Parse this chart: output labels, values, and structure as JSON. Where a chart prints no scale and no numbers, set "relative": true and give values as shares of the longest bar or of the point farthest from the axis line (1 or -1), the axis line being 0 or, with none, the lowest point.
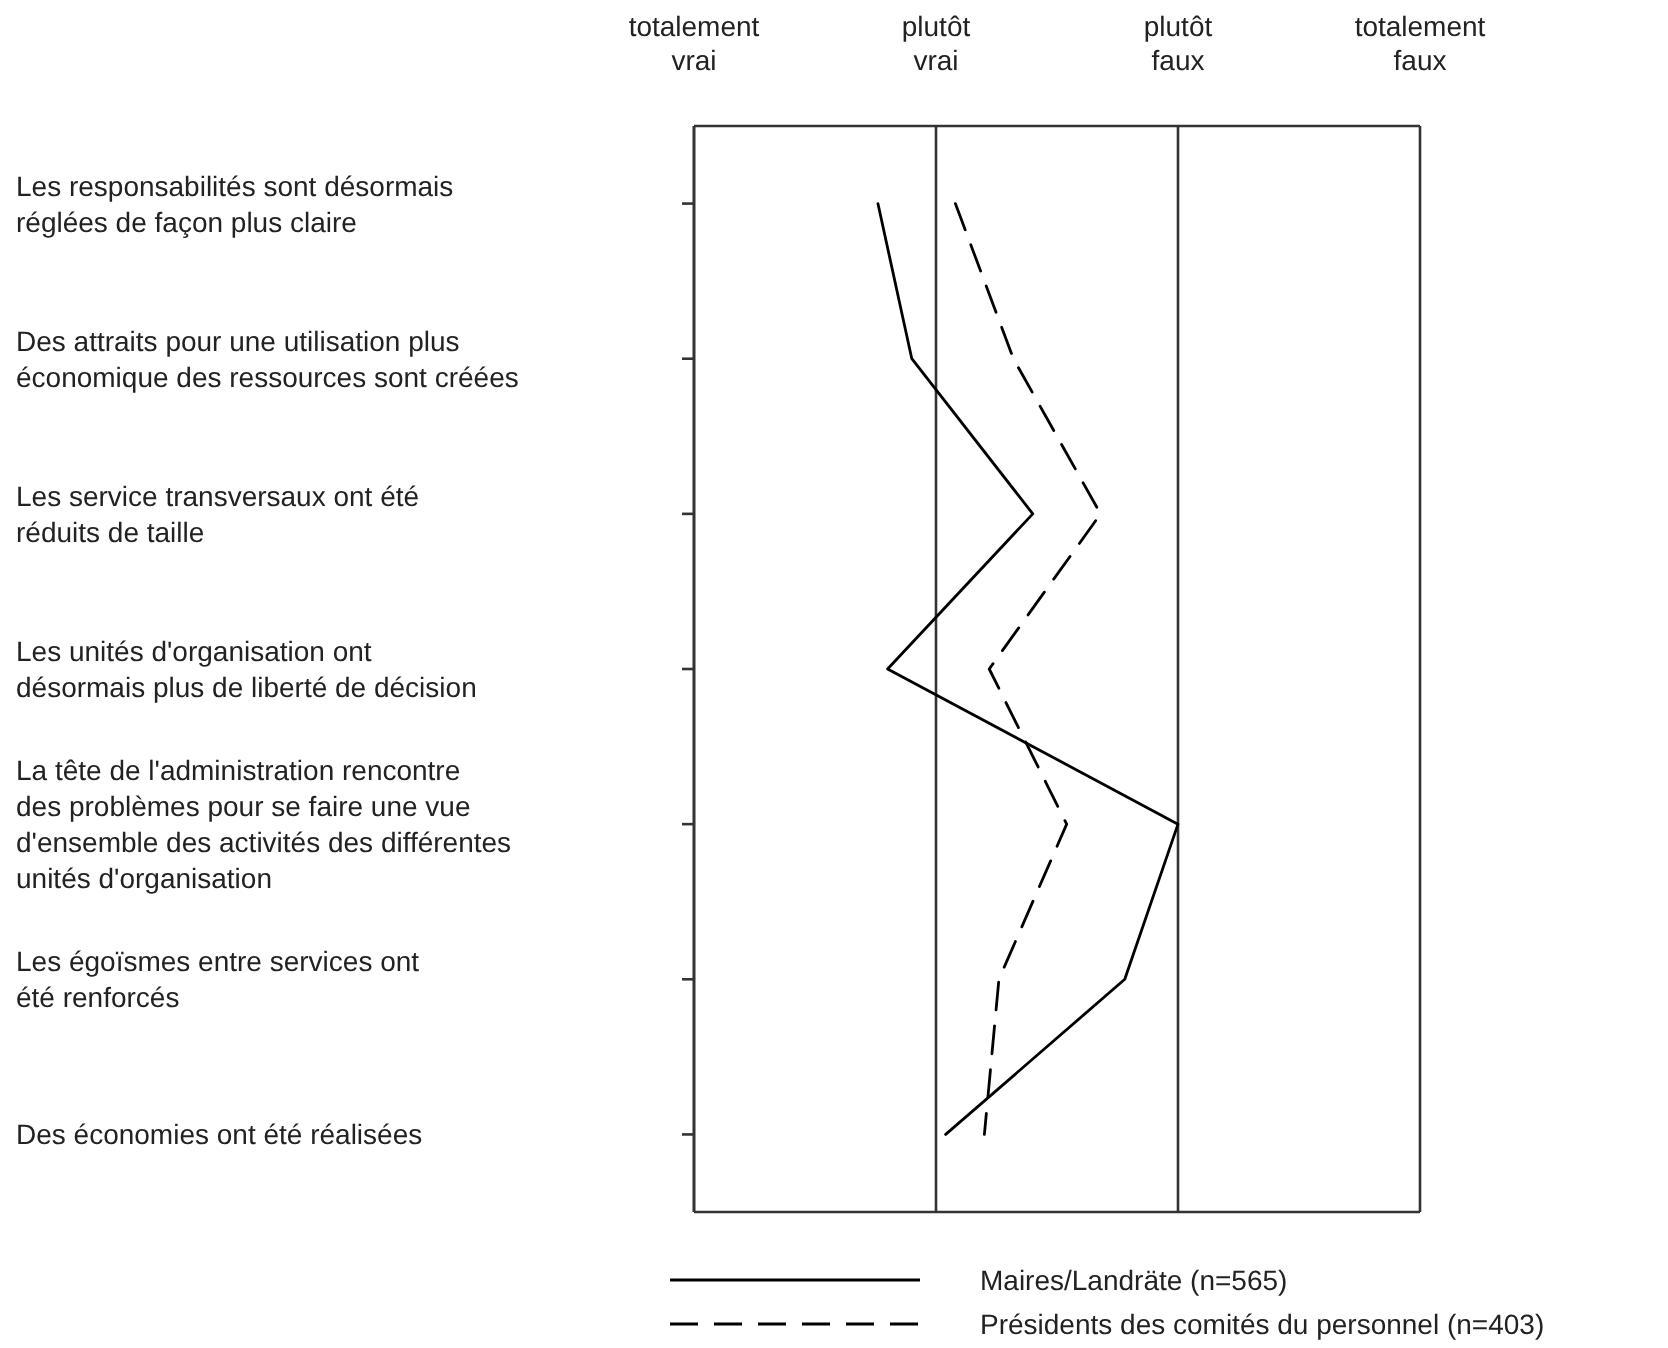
{
  "chart_data": {
    "type": "line",
    "orientation": "horizontal",
    "relative": true,
    "categories": [
      "Les responsabilités sont désormais\nréglées de façon plus claire",
      "Des attraits pour une utilisation plus\néconomique des ressources sont créées",
      "Les service transversaux ont été\nréduits de taille",
      "Les unités d'organisation ont\ndésormais plus de liberté de décision",
      "La tête de l'administration rencontre\ndes problèmes pour se faire une vue\nd'ensemble des activités des différentes\nunités d'organisation",
      "Les égoïsmes entre services ont\nété renforcés",
      "Des économies ont été réalisées"
    ],
    "series": [
      {
        "name": "Maires/Landräte   (n=565)",
        "color": "#000000",
        "line_style": "solid",
        "values": [
          0.38,
          0.45,
          0.7,
          0.4,
          1.0,
          0.89,
          0.52
        ]
      },
      {
        "name": "Présidents des comités du personnel (n=403)",
        "color": "#000000",
        "line_style": "dashed",
        "values": [
          0.54,
          0.66,
          0.84,
          0.61,
          0.77,
          0.63,
          0.6
        ]
      }
    ],
    "ref_lines": [
      {
        "axis": "x",
        "value": 0,
        "label": "totalement vrai"
      },
      {
        "axis": "x",
        "value": 0.5,
        "label": "plutôt vrai"
      },
      {
        "axis": "x",
        "value": 1,
        "label": "plutôt faux"
      },
      {
        "axis": "x",
        "value": 1.5,
        "label": "totalement faux"
      }
    ],
    "legend": "bottom"
  }
}
